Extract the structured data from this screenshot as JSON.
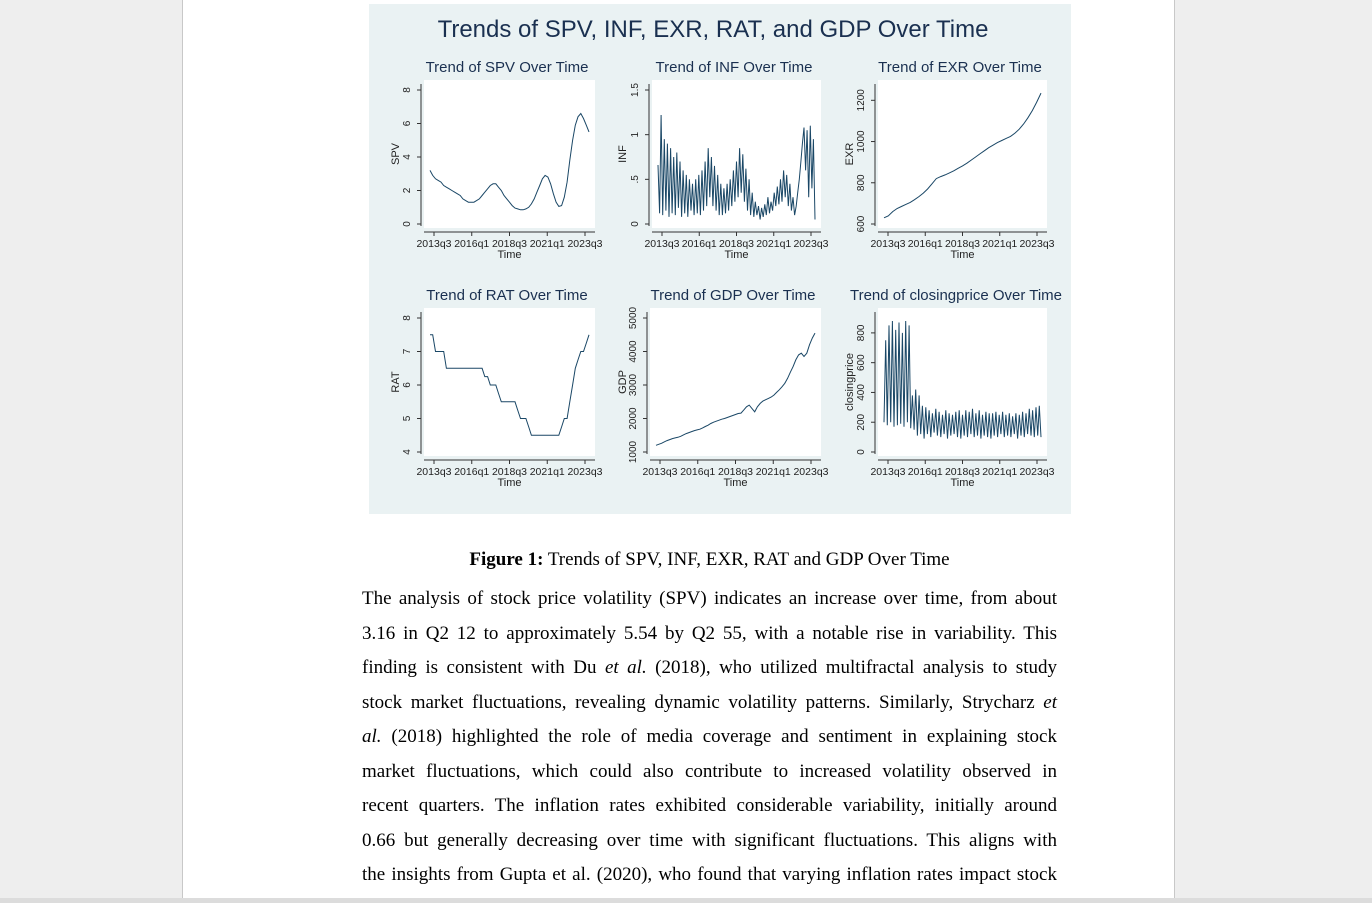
{
  "figure": {
    "main_title": "Trends of SPV, INF, EXR, RAT, and GDP Over Time",
    "line_color": "#1a4766",
    "background_color": "#eaf2f3"
  },
  "chart_data": [
    {
      "type": "line",
      "title": "Trend of SPV Over Time",
      "xlabel": "Time",
      "ylabel": "SPV",
      "x_ticks": [
        "2013q3",
        "2016q1",
        "2018q3",
        "2021q1",
        "2023q3"
      ],
      "y_ticks": [
        "0",
        "2",
        "4",
        "6",
        "8"
      ],
      "ylim": [
        0,
        8
      ],
      "values": [
        3.2,
        2.9,
        2.7,
        2.6,
        2.5,
        2.3,
        2.2,
        2.1,
        2.0,
        1.9,
        1.8,
        1.7,
        1.5,
        1.4,
        1.3,
        1.3,
        1.3,
        1.4,
        1.5,
        1.7,
        1.9,
        2.1,
        2.3,
        2.4,
        2.4,
        2.2,
        2.0,
        1.7,
        1.5,
        1.3,
        1.1,
        0.95,
        0.9,
        0.85,
        0.85,
        0.9,
        1.0,
        1.2,
        1.5,
        1.9,
        2.3,
        2.7,
        2.9,
        2.8,
        2.4,
        1.8,
        1.3,
        1.05,
        1.1,
        1.6,
        2.5,
        3.8,
        5.0,
        5.9,
        6.4,
        6.6,
        6.3,
        5.9,
        5.5
      ]
    },
    {
      "type": "line",
      "title": "Trend of INF Over Time",
      "xlabel": "Time",
      "ylabel": "INF",
      "x_ticks": [
        "2013q3",
        "2016q1",
        "2018q3",
        "2021q1",
        "2023q3"
      ],
      "y_ticks": [
        "0",
        ".5",
        "1",
        "1.5"
      ],
      "ylim": [
        0,
        1.5
      ],
      "values": [
        0.66,
        0.12,
        1.22,
        0.1,
        0.95,
        0.15,
        0.9,
        0.08,
        0.85,
        0.12,
        0.75,
        0.1,
        0.8,
        0.18,
        0.7,
        0.08,
        0.6,
        0.12,
        0.55,
        0.08,
        0.5,
        0.15,
        0.45,
        0.1,
        0.5,
        0.12,
        0.55,
        0.1,
        0.6,
        0.15,
        0.7,
        0.2,
        0.85,
        0.3,
        0.75,
        0.2,
        0.65,
        0.15,
        0.55,
        0.1,
        0.45,
        0.1,
        0.4,
        0.12,
        0.45,
        0.15,
        0.5,
        0.2,
        0.6,
        0.25,
        0.7,
        0.3,
        0.85,
        0.35,
        0.78,
        0.25,
        0.62,
        0.15,
        0.5,
        0.1,
        0.35,
        0.08,
        0.25,
        0.1,
        0.2,
        0.05,
        0.18,
        0.08,
        0.22,
        0.1,
        0.3,
        0.12,
        0.25,
        0.15,
        0.35,
        0.2,
        0.42,
        0.22,
        0.5,
        0.25,
        0.6,
        0.3,
        0.55,
        0.2,
        0.45,
        0.15,
        0.3,
        0.1,
        0.2,
        0.35,
        0.5,
        0.7,
        0.9,
        1.08,
        0.6,
        1.05,
        0.3,
        1.1,
        0.4,
        0.95,
        0.05
      ]
    },
    {
      "type": "line",
      "title": "Trend of EXR Over Time",
      "xlabel": "Time",
      "ylabel": "EXR",
      "x_ticks": [
        "2013q3",
        "2016q1",
        "2018q3",
        "2021q1",
        "2023q3"
      ],
      "y_ticks": [
        "600",
        "800",
        "1000",
        "1200"
      ],
      "ylim": [
        600,
        1250
      ],
      "values": [
        630,
        640,
        660,
        675,
        685,
        695,
        705,
        718,
        733,
        750,
        770,
        795,
        820,
        830,
        838,
        848,
        858,
        870,
        882,
        895,
        910,
        925,
        940,
        955,
        970,
        982,
        995,
        1005,
        1015,
        1025,
        1040,
        1060,
        1085,
        1115,
        1150,
        1190,
        1235
      ]
    },
    {
      "type": "line",
      "title": "Trend of RAT Over Time",
      "xlabel": "Time",
      "ylabel": "RAT",
      "x_ticks": [
        "2013q3",
        "2016q1",
        "2018q3",
        "2021q1",
        "2023q3"
      ],
      "y_ticks": [
        "4",
        "5",
        "6",
        "7",
        "8"
      ],
      "ylim": [
        4,
        8
      ],
      "values": [
        7.5,
        7.5,
        7.0,
        7.0,
        7.0,
        7.0,
        6.5,
        6.5,
        6.5,
        6.5,
        6.5,
        6.5,
        6.5,
        6.5,
        6.5,
        6.5,
        6.5,
        6.5,
        6.5,
        6.5,
        6.25,
        6.25,
        6.0,
        6.0,
        6.0,
        5.75,
        5.5,
        5.5,
        5.5,
        5.5,
        5.5,
        5.5,
        5.25,
        5.0,
        5.0,
        5.0,
        4.75,
        4.5,
        4.5,
        4.5,
        4.5,
        4.5,
        4.5,
        4.5,
        4.5,
        4.5,
        4.5,
        4.5,
        4.75,
        5.0,
        5.0,
        5.5,
        6.0,
        6.5,
        6.75,
        7.0,
        7.0,
        7.25,
        7.5
      ]
    },
    {
      "type": "line",
      "title": "Trend of GDP Over Time",
      "xlabel": "Time",
      "ylabel": "GDP",
      "x_ticks": [
        "2013q3",
        "2016q1",
        "2018q3",
        "2021q1",
        "2023q3"
      ],
      "y_ticks": [
        "1000",
        "2000",
        "3000",
        "4000",
        "5000"
      ],
      "ylim": [
        1000,
        5000
      ],
      "values": [
        1200,
        1230,
        1260,
        1300,
        1340,
        1370,
        1400,
        1420,
        1440,
        1470,
        1510,
        1550,
        1580,
        1610,
        1640,
        1660,
        1680,
        1720,
        1760,
        1800,
        1850,
        1890,
        1920,
        1950,
        1980,
        2000,
        2030,
        2060,
        2090,
        2120,
        2150,
        2160,
        2250,
        2350,
        2400,
        2300,
        2200,
        2350,
        2450,
        2520,
        2560,
        2600,
        2640,
        2700,
        2780,
        2860,
        2950,
        3050,
        3200,
        3380,
        3550,
        3750,
        3900,
        3950,
        3850,
        3950,
        4200,
        4400,
        4550
      ]
    },
    {
      "type": "line",
      "title": "Trend of closingprice Over Time",
      "xlabel": "Time",
      "ylabel": "closingprice",
      "x_ticks": [
        "2013q3",
        "2016q1",
        "2018q3",
        "2021q1",
        "2023q3"
      ],
      "y_ticks": [
        "0",
        "200",
        "400",
        "600",
        "800"
      ],
      "ylim": [
        0,
        900
      ],
      "values": [
        200,
        750,
        180,
        850,
        200,
        880,
        170,
        820,
        180,
        870,
        190,
        800,
        170,
        880,
        200,
        850,
        160,
        380,
        150,
        420,
        110,
        380,
        120,
        310,
        90,
        300,
        120,
        280,
        100,
        260,
        130,
        290,
        110,
        270,
        100,
        250,
        120,
        280,
        90,
        260,
        110,
        250,
        120,
        270,
        100,
        280,
        90,
        250,
        110,
        280,
        100,
        270,
        120,
        290,
        100,
        260,
        110,
        280,
        90,
        250,
        110,
        270,
        100,
        260,
        90,
        260,
        110,
        270,
        100,
        250,
        120,
        270,
        100,
        250,
        110,
        260,
        100,
        240,
        120,
        260,
        90,
        250,
        110,
        270,
        100,
        260,
        120,
        290,
        110,
        280,
        100,
        300,
        110,
        310,
        100
      ]
    }
  ],
  "caption": {
    "label": "Figure 1:",
    "text": " Trends of SPV, INF, EXR, RAT and GDP Over Time"
  },
  "body": {
    "l1": "The analysis of stock price volatility (SPV) indicates an increase over time, from about",
    "l2": "3.16 in Q2 12 to approximately 5.54 by Q2 55, with a notable rise in variability. This",
    "l3a": "finding is consistent with Du ",
    "l3b": "et al.",
    "l3c": " (2018), who utilized multifractal analysis to study",
    "l4a": "stock market fluctuations, revealing dynamic volatility patterns. Similarly, Strycharz ",
    "l4b": "et",
    "l5a": "al.",
    "l5b": " (2018) highlighted the role of media coverage and sentiment in explaining stock",
    "l6": "market fluctuations, which could also contribute to increased volatility observed in",
    "l7": "recent quarters. The inflation rates exhibited considerable variability, initially around",
    "l8": "0.66 but generally decreasing over time with significant fluctuations. This aligns with",
    "l9": "the insights from Gupta et al. (2020), who found that varying inflation rates impact stock"
  }
}
